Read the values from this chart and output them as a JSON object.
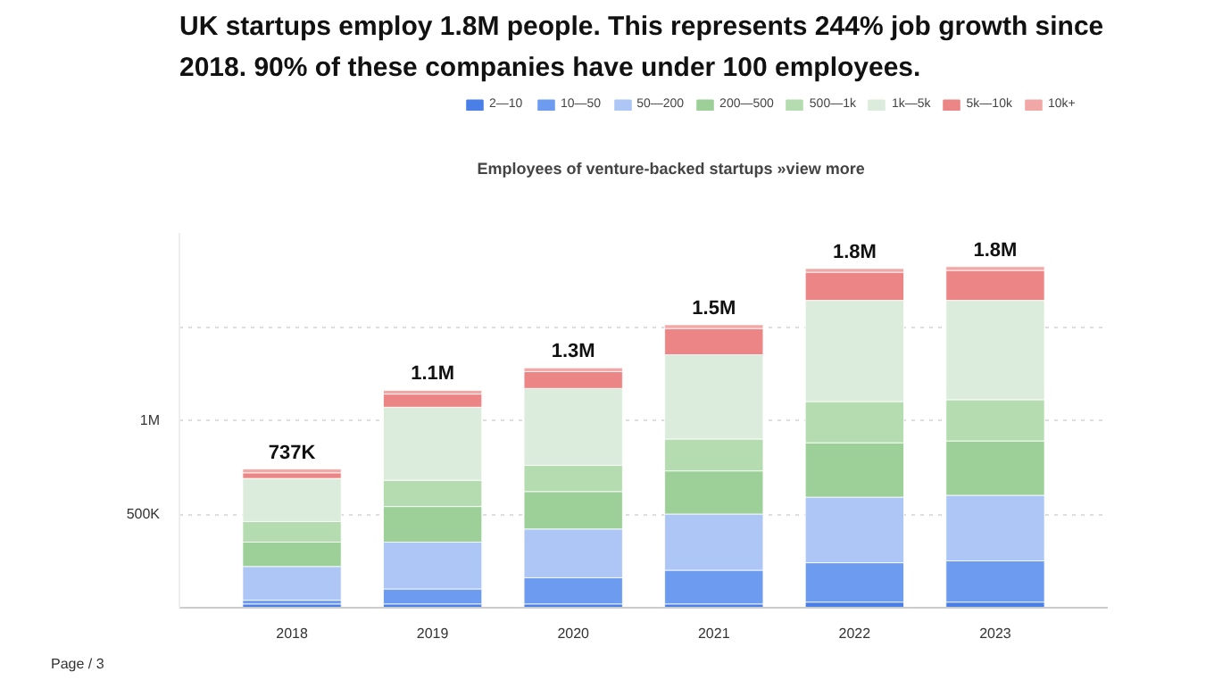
{
  "chart_data": {
    "type": "bar",
    "stacked": true,
    "title": "UK startups employ 1.8M people. This represents 244% job growth since 2018. 90% of these companies have under 100 employees.",
    "subtitle": "Employees of venture-backed startups »view more",
    "categories": [
      "2018",
      "2019",
      "2020",
      "2021",
      "2022",
      "2023"
    ],
    "series": [
      {
        "name": "2—10",
        "color": "#4a7fe8",
        "values": [
          20000,
          20000,
          20000,
          20000,
          30000,
          30000
        ]
      },
      {
        "name": "10—50",
        "color": "#6d9bf0",
        "values": [
          20000,
          80000,
          140000,
          180000,
          210000,
          220000
        ]
      },
      {
        "name": "50—200",
        "color": "#adc6f5",
        "values": [
          180000,
          250000,
          260000,
          300000,
          350000,
          350000
        ]
      },
      {
        "name": "200—500",
        "color": "#9dcf98",
        "values": [
          130000,
          190000,
          200000,
          230000,
          290000,
          290000
        ]
      },
      {
        "name": "500—1k",
        "color": "#b5dcb0",
        "values": [
          110000,
          140000,
          140000,
          170000,
          220000,
          220000
        ]
      },
      {
        "name": "1k—5k",
        "color": "#dcecdc",
        "values": [
          230000,
          390000,
          410000,
          450000,
          540000,
          530000
        ]
      },
      {
        "name": "5k—10k",
        "color": "#ec8585",
        "values": [
          30000,
          70000,
          90000,
          140000,
          150000,
          160000
        ]
      },
      {
        "name": "10k+",
        "color": "#f2a7a7",
        "values": [
          20000,
          20000,
          20000,
          20000,
          20000,
          20000
        ]
      }
    ],
    "totals": [
      "737K",
      "1.1M",
      "1.3M",
      "1.5M",
      "1.8M",
      "1.8M"
    ],
    "ylim": [
      0,
      2000000
    ],
    "yticks": [
      {
        "value": 500000,
        "label": "500K"
      },
      {
        "value": 1000000,
        "label": "1M"
      },
      {
        "value": 1500000,
        "label": null
      }
    ],
    "grid": "y",
    "legend": "top",
    "annotations": [
      "Page / 3"
    ]
  }
}
